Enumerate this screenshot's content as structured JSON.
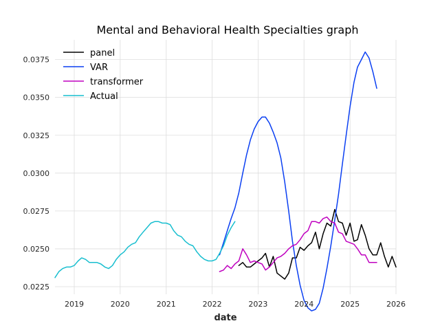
{
  "chart_data": {
    "type": "line",
    "title": "Mental and Behavioral Health Specialties graph",
    "xlabel": "date",
    "ylabel": "",
    "x_type": "date",
    "xlim": [
      "2018-08-01",
      "2026-01-01"
    ],
    "ylim": [
      0.022,
      0.0388
    ],
    "x_ticks": [
      {
        "value": "2019-01-01",
        "label": "2019"
      },
      {
        "value": "2020-01-01",
        "label": "2020"
      },
      {
        "value": "2021-01-01",
        "label": "2021"
      },
      {
        "value": "2022-01-01",
        "label": "2022"
      },
      {
        "value": "2023-01-01",
        "label": "2023"
      },
      {
        "value": "2024-01-01",
        "label": "2024"
      },
      {
        "value": "2025-01-01",
        "label": "2025"
      },
      {
        "value": "2026-01-01",
        "label": "2026"
      }
    ],
    "y_ticks": [
      {
        "value": 0.0225,
        "label": "0.0225"
      },
      {
        "value": 0.025,
        "label": "0.0250"
      },
      {
        "value": 0.0275,
        "label": "0.0275"
      },
      {
        "value": 0.03,
        "label": "0.0300"
      },
      {
        "value": 0.0325,
        "label": "0.0325"
      },
      {
        "value": 0.035,
        "label": "0.0350"
      },
      {
        "value": 0.0375,
        "label": "0.0375"
      }
    ],
    "grid": true,
    "legend_position": "top-left",
    "series": [
      {
        "name": "panel",
        "color": "#000000",
        "points": [
          [
            "2022-08",
            0.0239
          ],
          [
            "2022-09",
            0.0241
          ],
          [
            "2022-10",
            0.0238
          ],
          [
            "2022-11",
            0.0238
          ],
          [
            "2022-12",
            0.024
          ],
          [
            "2023-01",
            0.0242
          ],
          [
            "2023-02",
            0.0244
          ],
          [
            "2023-03",
            0.0247
          ],
          [
            "2023-04",
            0.0238
          ],
          [
            "2023-05",
            0.0245
          ],
          [
            "2023-06",
            0.0234
          ],
          [
            "2023-07",
            0.0232
          ],
          [
            "2023-08",
            0.023
          ],
          [
            "2023-09",
            0.0234
          ],
          [
            "2023-10",
            0.0244
          ],
          [
            "2023-11",
            0.0244
          ],
          [
            "2023-12",
            0.0251
          ],
          [
            "2024-01",
            0.0249
          ],
          [
            "2024-02",
            0.0252
          ],
          [
            "2024-03",
            0.0254
          ],
          [
            "2024-04",
            0.0261
          ],
          [
            "2024-05",
            0.025
          ],
          [
            "2024-06",
            0.026
          ],
          [
            "2024-07",
            0.0267
          ],
          [
            "2024-08",
            0.0265
          ],
          [
            "2024-09",
            0.0276
          ],
          [
            "2024-10",
            0.0268
          ],
          [
            "2024-11",
            0.0267
          ],
          [
            "2024-12",
            0.0259
          ],
          [
            "2025-01",
            0.0267
          ],
          [
            "2025-02",
            0.0255
          ],
          [
            "2025-03",
            0.0256
          ],
          [
            "2025-04",
            0.0266
          ],
          [
            "2025-05",
            0.0259
          ],
          [
            "2025-06",
            0.025
          ],
          [
            "2025-07",
            0.0246
          ],
          [
            "2025-08",
            0.0246
          ],
          [
            "2025-09",
            0.0254
          ],
          [
            "2025-10",
            0.0245
          ],
          [
            "2025-11",
            0.0238
          ],
          [
            "2025-12",
            0.0245
          ],
          [
            "2026-01",
            0.0238
          ]
        ]
      },
      {
        "name": "VAR",
        "color": "#0a3ff2",
        "points": [
          [
            "2022-03",
            0.0246
          ],
          [
            "2022-04",
            0.0254
          ],
          [
            "2022-05",
            0.0262
          ],
          [
            "2022-06",
            0.027
          ],
          [
            "2022-07",
            0.0277
          ],
          [
            "2022-08",
            0.0287
          ],
          [
            "2022-09",
            0.03
          ],
          [
            "2022-10",
            0.0312
          ],
          [
            "2022-11",
            0.0322
          ],
          [
            "2022-12",
            0.0329
          ],
          [
            "2023-01",
            0.0334
          ],
          [
            "2023-02",
            0.0337
          ],
          [
            "2023-03",
            0.0337
          ],
          [
            "2023-04",
            0.0333
          ],
          [
            "2023-05",
            0.0327
          ],
          [
            "2023-06",
            0.032
          ],
          [
            "2023-07",
            0.031
          ],
          [
            "2023-08",
            0.0294
          ],
          [
            "2023-09",
            0.0275
          ],
          [
            "2023-10",
            0.0255
          ],
          [
            "2023-11",
            0.0239
          ],
          [
            "2023-12",
            0.0226
          ],
          [
            "2024-01",
            0.0216
          ],
          [
            "2024-02",
            0.0211
          ],
          [
            "2024-03",
            0.0209
          ],
          [
            "2024-04",
            0.021
          ],
          [
            "2024-05",
            0.0214
          ],
          [
            "2024-06",
            0.0224
          ],
          [
            "2024-07",
            0.0237
          ],
          [
            "2024-08",
            0.0252
          ],
          [
            "2024-09",
            0.0269
          ],
          [
            "2024-10",
            0.0286
          ],
          [
            "2024-11",
            0.0306
          ],
          [
            "2024-12",
            0.0325
          ],
          [
            "2025-01",
            0.0344
          ],
          [
            "2025-02",
            0.036
          ],
          [
            "2025-03",
            0.037
          ],
          [
            "2025-04",
            0.0375
          ],
          [
            "2025-05",
            0.038
          ],
          [
            "2025-06",
            0.0376
          ],
          [
            "2025-07",
            0.0367
          ],
          [
            "2025-08",
            0.0356
          ]
        ]
      },
      {
        "name": "transformer",
        "color": "#bf00bf",
        "points": [
          [
            "2022-03",
            0.0235
          ],
          [
            "2022-04",
            0.0236
          ],
          [
            "2022-05",
            0.0239
          ],
          [
            "2022-06",
            0.0237
          ],
          [
            "2022-07",
            0.024
          ],
          [
            "2022-08",
            0.0242
          ],
          [
            "2022-09",
            0.025
          ],
          [
            "2022-10",
            0.0246
          ],
          [
            "2022-11",
            0.0241
          ],
          [
            "2022-12",
            0.0242
          ],
          [
            "2023-01",
            0.0241
          ],
          [
            "2023-02",
            0.024
          ],
          [
            "2023-03",
            0.0236
          ],
          [
            "2023-04",
            0.0238
          ],
          [
            "2023-05",
            0.0241
          ],
          [
            "2023-06",
            0.0244
          ],
          [
            "2023-07",
            0.0245
          ],
          [
            "2023-08",
            0.0247
          ],
          [
            "2023-09",
            0.025
          ],
          [
            "2023-10",
            0.0252
          ],
          [
            "2023-11",
            0.0253
          ],
          [
            "2023-12",
            0.0256
          ],
          [
            "2024-01",
            0.026
          ],
          [
            "2024-02",
            0.0262
          ],
          [
            "2024-03",
            0.0268
          ],
          [
            "2024-04",
            0.0268
          ],
          [
            "2024-05",
            0.0267
          ],
          [
            "2024-06",
            0.027
          ],
          [
            "2024-07",
            0.0271
          ],
          [
            "2024-08",
            0.0268
          ],
          [
            "2024-09",
            0.0267
          ],
          [
            "2024-10",
            0.0261
          ],
          [
            "2024-11",
            0.026
          ],
          [
            "2024-12",
            0.0255
          ],
          [
            "2025-01",
            0.0254
          ],
          [
            "2025-02",
            0.0253
          ],
          [
            "2025-03",
            0.025
          ],
          [
            "2025-04",
            0.0246
          ],
          [
            "2025-05",
            0.0246
          ],
          [
            "2025-06",
            0.0241
          ],
          [
            "2025-07",
            0.0241
          ],
          [
            "2025-08",
            0.0241
          ]
        ]
      },
      {
        "name": "Actual",
        "color": "#17becf",
        "points": [
          [
            "2018-08",
            0.0231
          ],
          [
            "2018-09",
            0.0235
          ],
          [
            "2018-10",
            0.0237
          ],
          [
            "2018-11",
            0.0238
          ],
          [
            "2018-12",
            0.0238
          ],
          [
            "2019-01",
            0.0239
          ],
          [
            "2019-02",
            0.0242
          ],
          [
            "2019-03",
            0.0244
          ],
          [
            "2019-04",
            0.0243
          ],
          [
            "2019-05",
            0.0241
          ],
          [
            "2019-06",
            0.0241
          ],
          [
            "2019-07",
            0.0241
          ],
          [
            "2019-08",
            0.024
          ],
          [
            "2019-09",
            0.0238
          ],
          [
            "2019-10",
            0.0237
          ],
          [
            "2019-11",
            0.0239
          ],
          [
            "2019-12",
            0.0243
          ],
          [
            "2020-01",
            0.0246
          ],
          [
            "2020-02",
            0.0248
          ],
          [
            "2020-03",
            0.0251
          ],
          [
            "2020-04",
            0.0253
          ],
          [
            "2020-05",
            0.0254
          ],
          [
            "2020-06",
            0.0258
          ],
          [
            "2020-07",
            0.0261
          ],
          [
            "2020-08",
            0.0264
          ],
          [
            "2020-09",
            0.0267
          ],
          [
            "2020-10",
            0.0268
          ],
          [
            "2020-11",
            0.0268
          ],
          [
            "2020-12",
            0.0267
          ],
          [
            "2021-01",
            0.0267
          ],
          [
            "2021-02",
            0.0266
          ],
          [
            "2021-03",
            0.0262
          ],
          [
            "2021-04",
            0.0259
          ],
          [
            "2021-05",
            0.0258
          ],
          [
            "2021-06",
            0.0255
          ],
          [
            "2021-07",
            0.0253
          ],
          [
            "2021-08",
            0.0252
          ],
          [
            "2021-09",
            0.0248
          ],
          [
            "2021-10",
            0.0245
          ],
          [
            "2021-11",
            0.0243
          ],
          [
            "2021-12",
            0.0242
          ],
          [
            "2022-01",
            0.0242
          ],
          [
            "2022-02",
            0.0243
          ],
          [
            "2022-03",
            0.0247
          ],
          [
            "2022-04",
            0.0252
          ],
          [
            "2022-05",
            0.0259
          ],
          [
            "2022-06",
            0.0264
          ],
          [
            "2022-07",
            0.0268
          ]
        ]
      }
    ]
  }
}
